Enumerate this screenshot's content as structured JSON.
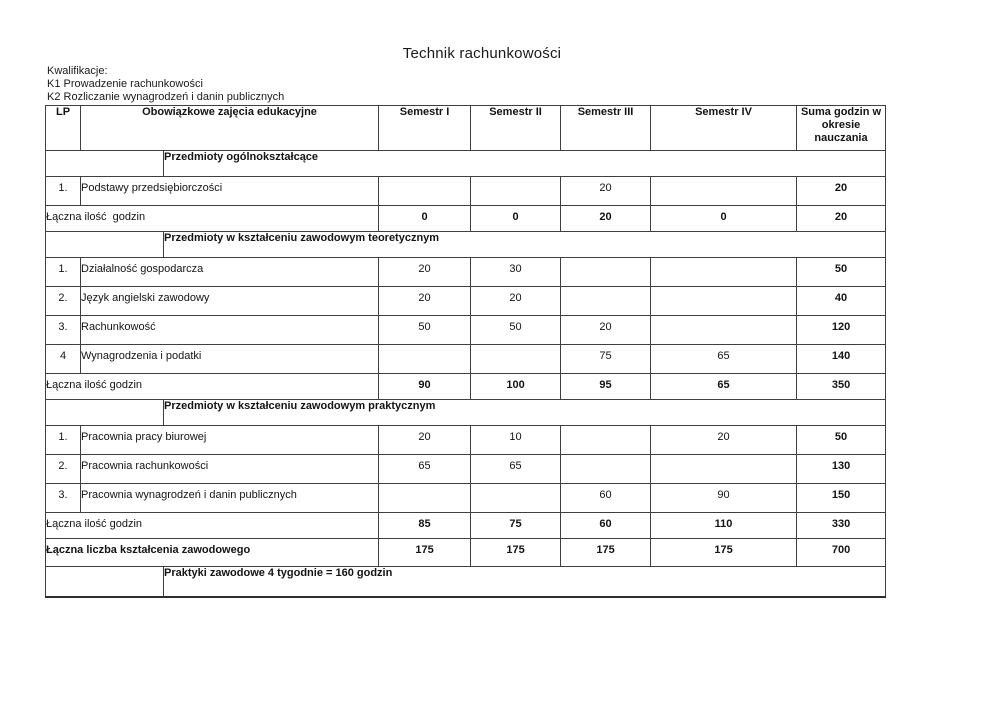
{
  "page": {
    "title": "Technik rachunkowości",
    "qualifications_label": "Kwalifikacje:",
    "qualifications": [
      "K1 Prowadzenie rachunkowości",
      "K2 Rozliczanie wynagrodzeń i danin publicznych"
    ]
  },
  "table": {
    "headers": [
      "LP",
      "Obowiązkowe zajęcia edukacyjne",
      "Semestr I",
      "Semestr II",
      "Semestr III",
      "Semestr IV",
      "Suma godzin w okresie nauczania"
    ],
    "sections": [
      {
        "title": "Przedmioty ogólnokształcące",
        "rows": [
          {
            "lp": "1.",
            "name": "Podstawy przedsiębiorczości",
            "sem1": "",
            "sem2": "",
            "sem3": "20",
            "sem4": "",
            "sum": "20"
          }
        ],
        "total": {
          "label": "Łączna ilość  godzin",
          "sem1": "0",
          "sem2": "0",
          "sem3": "20",
          "sem4": "0",
          "sum": "20"
        }
      },
      {
        "title": "Przedmioty w kształceniu zawodowym teoretycznym",
        "rows": [
          {
            "lp": "1.",
            "name": "Działalność gospodarcza",
            "sem1": "20",
            "sem2": "30",
            "sem3": "",
            "sem4": "",
            "sum": "50"
          },
          {
            "lp": "2.",
            "name": "Język angielski zawodowy",
            "sem1": "20",
            "sem2": "20",
            "sem3": "",
            "sem4": "",
            "sum": "40"
          },
          {
            "lp": "3.",
            "name": "Rachunkowość",
            "sem1": "50",
            "sem2": "50",
            "sem3": "20",
            "sem4": "",
            "sum": "120"
          },
          {
            "lp": "4",
            "name": "Wynagrodzenia i podatki",
            "sem1": "",
            "sem2": "",
            "sem3": "75",
            "sem4": "65",
            "sum": "140"
          }
        ],
        "total": {
          "label": "Łączna ilość godzin",
          "sem1": "90",
          "sem2": "100",
          "sem3": "95",
          "sem4": "65",
          "sum": "350"
        }
      },
      {
        "title": "Przedmioty w kształceniu zawodowym praktycznym",
        "rows": [
          {
            "lp": "1.",
            "name": "Pracownia pracy biurowej",
            "sem1": "20",
            "sem2": "10",
            "sem3": "",
            "sem4": "20",
            "sum": "50"
          },
          {
            "lp": "2.",
            "name": "Pracownia rachunkowości",
            "sem1": "65",
            "sem2": "65",
            "sem3": "",
            "sem4": "",
            "sum": "130"
          },
          {
            "lp": "3.",
            "name": "Pracownia wynagrodzeń i danin publicznych",
            "sem1": "",
            "sem2": "",
            "sem3": "60",
            "sem4": "90",
            "sum": "150"
          }
        ],
        "total": {
          "label": "Łączna ilość godzin",
          "sem1": "85",
          "sem2": "75",
          "sem3": "60",
          "sem4": "110",
          "sum": "330"
        }
      }
    ],
    "grand_total": {
      "label": "Łączna liczba kształcenia zawodowego",
      "sem1": "175",
      "sem2": "175",
      "sem3": "175",
      "sem4": "175",
      "sum": "700"
    },
    "footer_note": "Praktyki zawodowe 4 tygodnie = 160 godzin"
  }
}
